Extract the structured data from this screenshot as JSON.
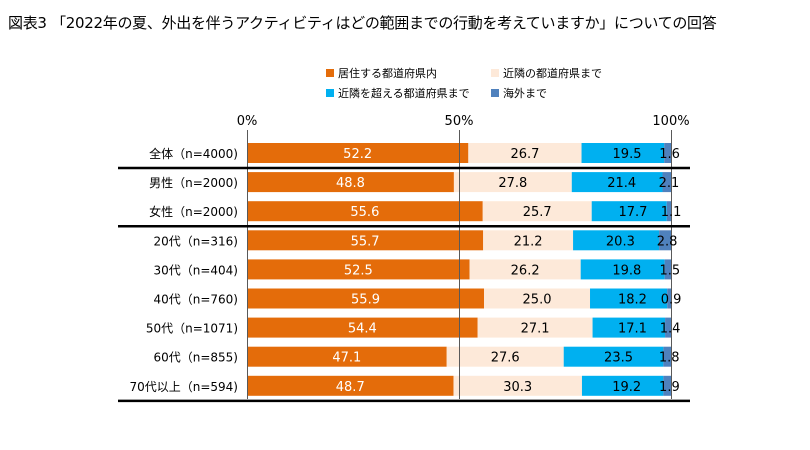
{
  "title": "図表3 「2022年の夏、外出を伴うアクティビティはどの範囲までの行動を考えていますか」についての回答",
  "chart_data": {
    "type": "bar",
    "orientation": "horizontal",
    "stacked": "100%",
    "title": "図表3 「2022年の夏、外出を伴うアクティビティはどの範囲までの行動を考えていますか」についての回答",
    "xlabel": "",
    "ylabel": "",
    "xlim": [
      0,
      100
    ],
    "x_ticks": [
      "0%",
      "50%",
      "100%"
    ],
    "x_tick_values": [
      0,
      50,
      100
    ],
    "grid": true,
    "legend_position": "top",
    "categories": [
      "全体（n=4000)",
      "男性（n=2000)",
      "女性（n=2000)",
      "20代（n=316)",
      "30代（n=404)",
      "40代（n=760)",
      "50代（n=1071)",
      "60代（n=855)",
      "70代以上（n=594)"
    ],
    "group_separators_after": [
      0,
      2,
      8
    ],
    "series": [
      {
        "name": "居住する都道府県内",
        "color": "#E46C0A",
        "label_color": "#ffffff",
        "values": [
          52.2,
          48.8,
          55.6,
          55.7,
          52.5,
          55.9,
          54.4,
          47.1,
          48.7
        ]
      },
      {
        "name": "近隣の都道府県まで",
        "color": "#FDE9D9",
        "label_color": "#000000",
        "values": [
          26.7,
          27.8,
          25.7,
          21.2,
          26.2,
          25.0,
          27.1,
          27.6,
          30.3
        ]
      },
      {
        "name": "近隣を超える都道府県まで",
        "color": "#00B0F0",
        "label_color": "#000000",
        "values": [
          19.5,
          21.4,
          17.7,
          20.3,
          19.8,
          18.2,
          17.1,
          23.5,
          19.2
        ]
      },
      {
        "name": "海外まで",
        "color": "#4F81BD",
        "label_color": "#000000",
        "values": [
          1.6,
          2.1,
          1.1,
          2.8,
          1.5,
          0.9,
          1.4,
          1.8,
          1.9
        ]
      }
    ]
  }
}
